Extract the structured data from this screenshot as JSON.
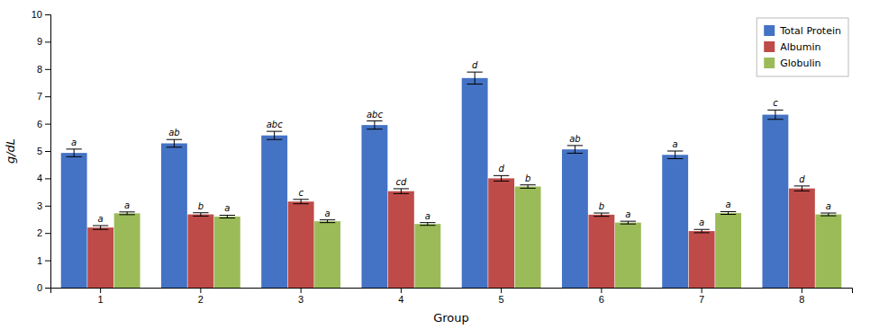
{
  "chart_data": {
    "type": "bar",
    "xlabel": "Group",
    "ylabel": "g/dL",
    "categories": [
      "1",
      "2",
      "3",
      "4",
      "5",
      "6",
      "7",
      "8"
    ],
    "series": [
      {
        "name": "Total Protein",
        "color": "#4472C4",
        "values": [
          4.93,
          5.28,
          5.57,
          5.95,
          7.67,
          5.06,
          4.86,
          6.33
        ],
        "errors": [
          0.14,
          0.14,
          0.15,
          0.15,
          0.22,
          0.14,
          0.14,
          0.17
        ],
        "labels": [
          "a",
          "ab",
          "abc",
          "abc",
          "d",
          "ab",
          "a",
          "c"
        ]
      },
      {
        "name": "Albumin",
        "color": "#BE4B48",
        "values": [
          2.2,
          2.68,
          3.15,
          3.53,
          4.0,
          2.67,
          2.07,
          3.63
        ],
        "errors": [
          0.07,
          0.06,
          0.08,
          0.09,
          0.1,
          0.06,
          0.06,
          0.09
        ],
        "labels": [
          "a",
          "b",
          "c",
          "cd",
          "d",
          "b",
          "a",
          "d"
        ]
      },
      {
        "name": "Globulin",
        "color": "#9BBB59",
        "values": [
          2.72,
          2.6,
          2.43,
          2.33,
          3.7,
          2.38,
          2.73,
          2.68
        ],
        "errors": [
          0.05,
          0.05,
          0.05,
          0.05,
          0.06,
          0.05,
          0.05,
          0.05
        ],
        "labels": [
          "a",
          "a",
          "a",
          "a",
          "b",
          "a",
          "a",
          "a"
        ]
      }
    ],
    "ylim": [
      0,
      10
    ],
    "yticks": [
      0,
      1,
      2,
      3,
      4,
      5,
      6,
      7,
      8,
      9,
      10
    ],
    "grid": false,
    "legend": "upper right"
  }
}
